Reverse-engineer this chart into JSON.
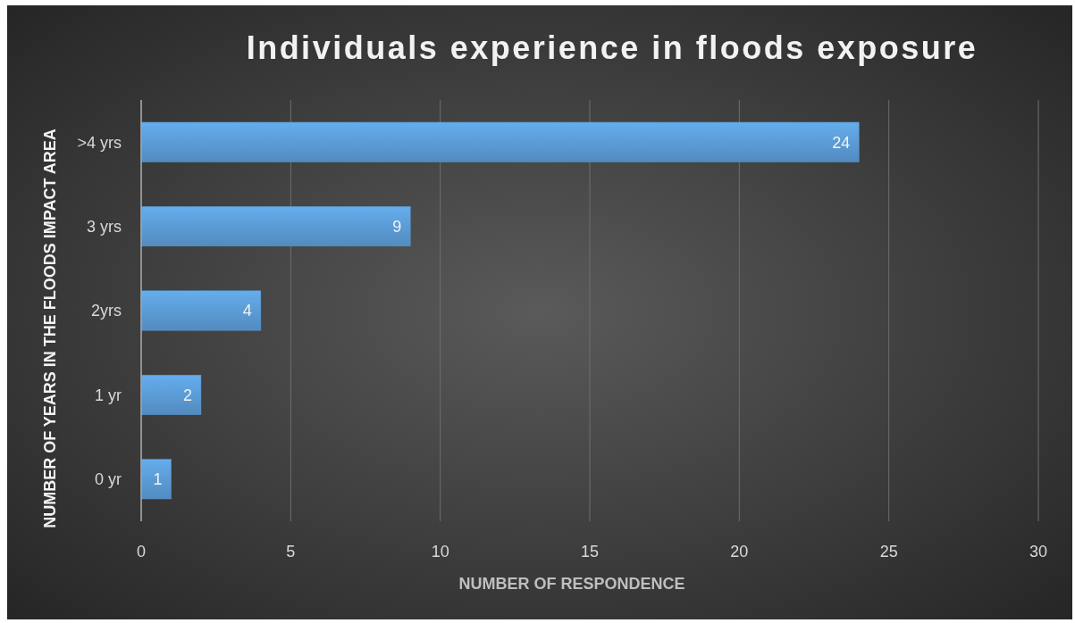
{
  "chart_data": {
    "type": "bar",
    "orientation": "horizontal",
    "title": "Individuals experience in floods exposure",
    "xlabel": "NUMBER OF RESPONDENCE",
    "ylabel": "NUMBER OF YEARS IN THE FLOODS IMPACT AREA",
    "categories": [
      ">4 yrs",
      "3 yrs",
      "2yrs",
      "1 yr",
      "0 yr"
    ],
    "values": [
      24,
      9,
      4,
      2,
      1
    ],
    "color": "#5b9bd5",
    "xlim": [
      0,
      30
    ],
    "xticks": [
      0,
      5,
      10,
      15,
      20,
      25,
      30
    ],
    "grid": "x",
    "data_labels": true
  }
}
